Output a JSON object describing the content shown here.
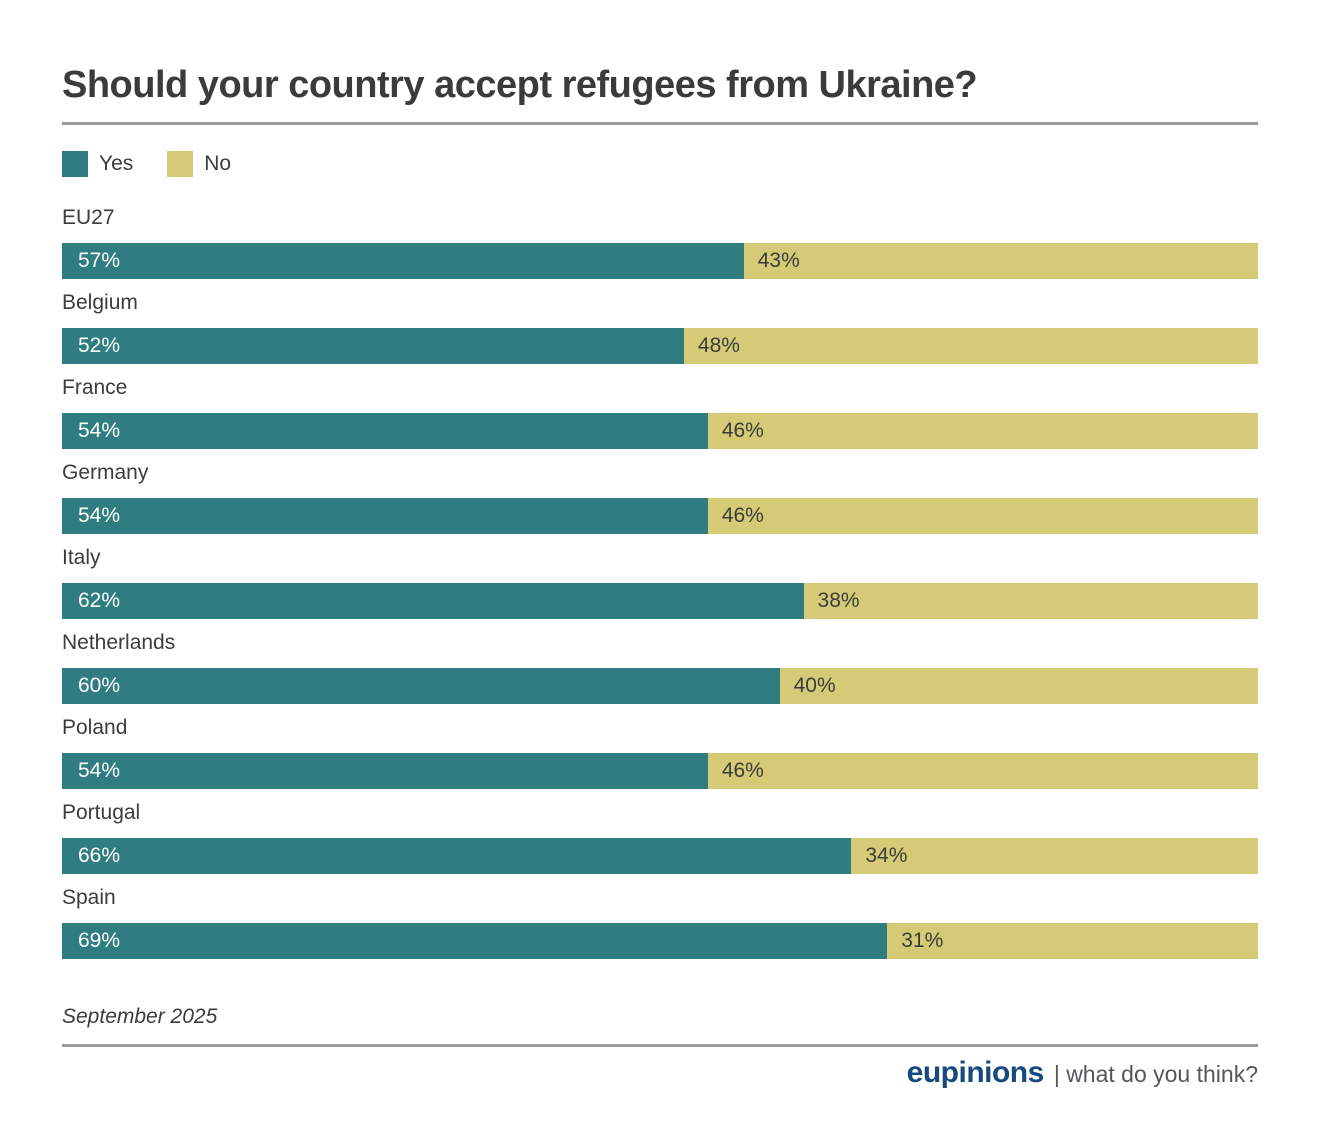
{
  "title": "Should your country accept refugees from Ukraine?",
  "legend": {
    "yes_label": "Yes",
    "no_label": "No"
  },
  "colors": {
    "yes": "#2f7d80",
    "no": "#d5ca75",
    "text": "#3c3c3b",
    "rule": "#9b9b9b",
    "brand_blue": "#164a7e",
    "tagline_gray": "#55565a"
  },
  "chart_data": {
    "type": "bar",
    "orientation": "horizontal",
    "stacked": true,
    "unit": "%",
    "xlim": [
      0,
      100
    ],
    "grid": false,
    "legend_position": "top-left",
    "value_labels": "inside",
    "categories": [
      "EU27",
      "Belgium",
      "France",
      "Germany",
      "Italy",
      "Netherlands",
      "Poland",
      "Portugal",
      "Spain"
    ],
    "series": [
      {
        "name": "Yes",
        "color": "#2f7d80",
        "values": [
          57,
          52,
          54,
          54,
          62,
          60,
          54,
          66,
          69
        ]
      },
      {
        "name": "No",
        "color": "#d5ca75",
        "values": [
          43,
          48,
          46,
          46,
          38,
          40,
          46,
          34,
          31
        ]
      }
    ]
  },
  "footer": {
    "date": "September 2025",
    "brand": "eupinions",
    "tagline": "| what do you think?"
  }
}
